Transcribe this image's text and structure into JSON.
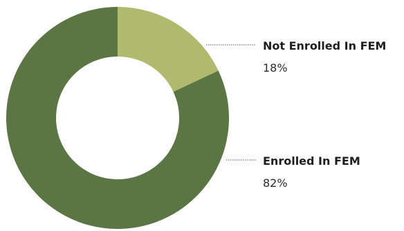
{
  "chart_data": {
    "type": "pie",
    "donut": true,
    "categories": [
      "Not Enrolled In FEM",
      "Enrolled In FEM"
    ],
    "values": [
      18,
      82
    ],
    "value_labels": [
      "18%",
      "82%"
    ],
    "colors": [
      "#b0ba6e",
      "#5c7544"
    ],
    "legend": "right"
  }
}
